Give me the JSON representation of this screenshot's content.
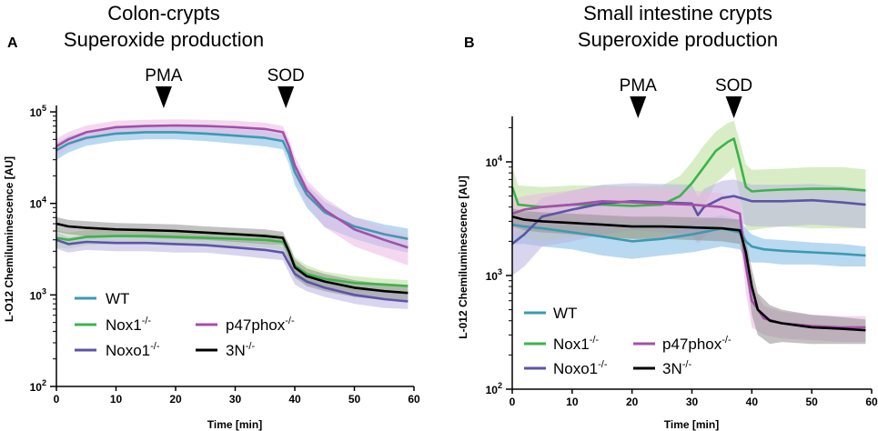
{
  "chart_data": [
    {
      "type": "line",
      "panel_label": "A",
      "title_line1": "Colon-crypts",
      "title_line2": "Superoxide production",
      "xlabel": "Time [min]",
      "ylabel": "L-O12 Chemiluminescence [AU]",
      "xlim": [
        0,
        60
      ],
      "ylim_log10": [
        2,
        5.07
      ],
      "x_ticks": [
        0,
        10,
        20,
        30,
        40,
        50,
        60
      ],
      "x_tick_labels": [
        "0",
        "10",
        "20",
        "30",
        "40",
        "50",
        "60"
      ],
      "y_ticks_log10": [
        2,
        3,
        4,
        5
      ],
      "y_tick_bases": [
        "10",
        "10",
        "10",
        "10"
      ],
      "y_tick_exps": [
        "2",
        "3",
        "4",
        "5"
      ],
      "annotations": [
        {
          "label": "PMA",
          "x": 18
        },
        {
          "label": "SOD",
          "x": 38.5
        }
      ],
      "series": [
        {
          "key": "wt",
          "name": "WT",
          "sup": "",
          "color": "#3a9bb0",
          "band_color": "#80b9e6",
          "x": [
            0,
            2,
            5,
            10,
            15,
            20,
            25,
            30,
            35,
            38,
            39,
            40,
            42,
            45,
            50,
            55,
            59
          ],
          "y": [
            38000,
            45000,
            52000,
            58000,
            60000,
            60000,
            58000,
            55000,
            52000,
            48000,
            35000,
            22000,
            12500,
            8000,
            5600,
            4600,
            4100
          ],
          "err": [
            8000,
            9000,
            9500,
            10000,
            10000,
            10000,
            10000,
            10000,
            10000,
            9000,
            8000,
            6000,
            3500,
            2500,
            1500,
            1300,
            1200
          ]
        },
        {
          "key": "nox1",
          "name": "Nox1",
          "sup": "-/-",
          "color": "#3cb34a",
          "band_color": "#b8df98",
          "x": [
            0,
            2,
            5,
            10,
            15,
            20,
            25,
            30,
            35,
            38,
            39,
            40,
            42,
            45,
            50,
            55,
            59
          ],
          "y": [
            4200,
            4000,
            4300,
            4400,
            4400,
            4300,
            4200,
            4100,
            4000,
            3800,
            3000,
            2100,
            1700,
            1500,
            1350,
            1300,
            1250
          ],
          "err": [
            900,
            800,
            800,
            800,
            800,
            800,
            800,
            700,
            700,
            700,
            600,
            500,
            400,
            300,
            250,
            200,
            200
          ]
        },
        {
          "key": "noxo1",
          "name": "Noxo1",
          "sup": "-/-",
          "color": "#5b55a6",
          "band_color": "#b9b3e0",
          "x": [
            0,
            2,
            5,
            10,
            15,
            20,
            25,
            30,
            35,
            38,
            39,
            40,
            42,
            45,
            50,
            55,
            59
          ],
          "y": [
            4000,
            3600,
            3800,
            3700,
            3700,
            3600,
            3500,
            3300,
            3100,
            2900,
            2200,
            1700,
            1400,
            1200,
            1000,
            900,
            850
          ],
          "err": [
            800,
            700,
            700,
            700,
            700,
            700,
            600,
            600,
            600,
            500,
            450,
            400,
            300,
            250,
            200,
            180,
            150
          ]
        },
        {
          "key": "p47",
          "name": "p47phox",
          "sup": "-/-",
          "color": "#a44fa9",
          "band_color": "#ebb8e1",
          "x": [
            0,
            2,
            5,
            10,
            15,
            20,
            25,
            30,
            35,
            38,
            39,
            40,
            42,
            45,
            50,
            55,
            59
          ],
          "y": [
            42000,
            50000,
            60000,
            68000,
            70000,
            71000,
            70000,
            68000,
            65000,
            60000,
            42000,
            26000,
            14000,
            8500,
            5200,
            4000,
            3300
          ],
          "err": [
            9000,
            10000,
            11000,
            12000,
            12000,
            12000,
            12000,
            12000,
            11000,
            10000,
            9000,
            7000,
            4000,
            3000,
            1800,
            1400,
            1200
          ]
        },
        {
          "key": "3n",
          "name": "3N",
          "sup": "-/-",
          "color": "#000000",
          "band_color": "#8f8f8f",
          "x": [
            0,
            2,
            5,
            10,
            15,
            20,
            25,
            30,
            35,
            38,
            39,
            40,
            42,
            45,
            50,
            55,
            59
          ],
          "y": [
            6000,
            5600,
            5400,
            5200,
            5100,
            5000,
            4800,
            4600,
            4400,
            4200,
            3000,
            2000,
            1600,
            1400,
            1200,
            1100,
            1050
          ],
          "err": [
            1100,
            1000,
            1000,
            900,
            900,
            900,
            800,
            800,
            800,
            700,
            600,
            450,
            350,
            300,
            250,
            220,
            200
          ]
        }
      ],
      "legend": {
        "placement": "lower-left",
        "entries": [
          "WT",
          "Nox1",
          "p47phox",
          "Noxo1",
          "3N"
        ],
        "sup": [
          "",
          "-/-",
          "-/-",
          "-/-",
          "-/-"
        ]
      }
    },
    {
      "type": "line",
      "panel_label": "B",
      "title_line1": "Small intestine crypts",
      "title_line2": "Superoxide production",
      "xlabel": "Time [min]",
      "ylabel": "L-012 Chemiluminescence [AU]",
      "xlim": [
        0,
        60
      ],
      "ylim_log10": [
        2,
        4.4
      ],
      "x_ticks": [
        0,
        10,
        20,
        30,
        40,
        50,
        60
      ],
      "x_tick_labels": [
        "0",
        "10",
        "20",
        "30",
        "40",
        "50",
        "60"
      ],
      "y_ticks_log10": [
        2,
        3,
        4
      ],
      "y_tick_bases": [
        "10",
        "10",
        "10"
      ],
      "y_tick_exps": [
        "2",
        "3",
        "4"
      ],
      "annotations": [
        {
          "label": "PMA",
          "x": 21
        },
        {
          "label": "SOD",
          "x": 37
        }
      ],
      "series": [
        {
          "key": "wt",
          "name": "WT",
          "sup": "",
          "color": "#3a9bb0",
          "band_color": "#80b9e6",
          "x": [
            0,
            2,
            5,
            10,
            15,
            20,
            25,
            30,
            35,
            38,
            39,
            40,
            42,
            45,
            50,
            55,
            59
          ],
          "y": [
            2800,
            2700,
            2600,
            2400,
            2200,
            2000,
            2100,
            2300,
            2600,
            2400,
            2000,
            1800,
            1700,
            1650,
            1600,
            1550,
            1500
          ],
          "err": [
            900,
            800,
            800,
            700,
            700,
            600,
            600,
            700,
            800,
            700,
            600,
            500,
            400,
            400,
            350,
            350,
            300
          ]
        },
        {
          "key": "nox1",
          "name": "Nox1",
          "sup": "-/-",
          "color": "#3cb34a",
          "band_color": "#b8df98",
          "x": [
            0,
            1,
            3,
            5,
            10,
            15,
            20,
            25,
            28,
            30,
            32,
            34,
            36,
            37,
            38,
            39,
            40,
            42,
            45,
            50,
            55,
            59
          ],
          "y": [
            6000,
            4200,
            4100,
            4000,
            4200,
            4200,
            4100,
            4200,
            5000,
            6500,
            9000,
            12500,
            15000,
            16000,
            10000,
            6000,
            5500,
            5600,
            5700,
            5800,
            5800,
            5600
          ],
          "err": [
            3000,
            2000,
            2000,
            2000,
            2000,
            2000,
            2000,
            2000,
            2500,
            3500,
            5000,
            6000,
            7000,
            7000,
            5000,
            3500,
            3000,
            3000,
            3000,
            3200,
            3200,
            3000
          ]
        },
        {
          "key": "noxo1",
          "name": "Noxo1",
          "sup": "-/-",
          "color": "#5b55a6",
          "band_color": "#b9b3e0",
          "x": [
            0,
            2,
            5,
            10,
            15,
            20,
            25,
            30,
            31,
            32,
            35,
            37,
            40,
            45,
            50,
            55,
            59
          ],
          "y": [
            1900,
            2300,
            3300,
            3800,
            4300,
            4500,
            4400,
            4300,
            3400,
            4000,
            4800,
            5000,
            4500,
            4500,
            4600,
            4400,
            4200
          ],
          "err": [
            900,
            1100,
            1500,
            1800,
            2000,
            2000,
            2000,
            2000,
            1500,
            1800,
            2000,
            2000,
            1800,
            1800,
            1800,
            1700,
            1600
          ]
        },
        {
          "key": "p47",
          "name": "p47phox",
          "sup": "-/-",
          "color": "#a44fa9",
          "band_color": "#ebb8e1",
          "x": [
            0,
            2,
            5,
            10,
            15,
            20,
            25,
            30,
            35,
            38,
            39,
            40,
            42,
            45,
            50,
            55,
            59
          ],
          "y": [
            3500,
            3800,
            4000,
            4200,
            4500,
            4400,
            4300,
            4200,
            4000,
            3500,
            1200,
            600,
            420,
            380,
            360,
            350,
            350
          ],
          "err": [
            1200,
            1200,
            1300,
            1400,
            1500,
            1500,
            1500,
            1400,
            1300,
            1200,
            500,
            250,
            120,
            100,
            90,
            90,
            90
          ]
        },
        {
          "key": "3n",
          "name": "3N",
          "sup": "-/-",
          "color": "#000000",
          "band_color": "#8f8f8f",
          "x": [
            0,
            2,
            5,
            10,
            15,
            20,
            25,
            30,
            35,
            38,
            39,
            40,
            41,
            43,
            45,
            50,
            55,
            59
          ],
          "y": [
            3300,
            3100,
            3000,
            2900,
            2800,
            2700,
            2700,
            2650,
            2600,
            2500,
            1600,
            800,
            500,
            400,
            380,
            350,
            340,
            330
          ],
          "err": [
            600,
            600,
            600,
            600,
            600,
            600,
            600,
            600,
            600,
            600,
            500,
            350,
            200,
            150,
            120,
            100,
            90,
            80
          ]
        }
      ],
      "legend": {
        "placement": "lower-left",
        "entries": [
          "WT",
          "Nox1",
          "p47phox",
          "Noxo1",
          "3N"
        ],
        "sup": [
          "",
          "-/-",
          "-/-",
          "-/-",
          "-/-"
        ]
      }
    }
  ]
}
